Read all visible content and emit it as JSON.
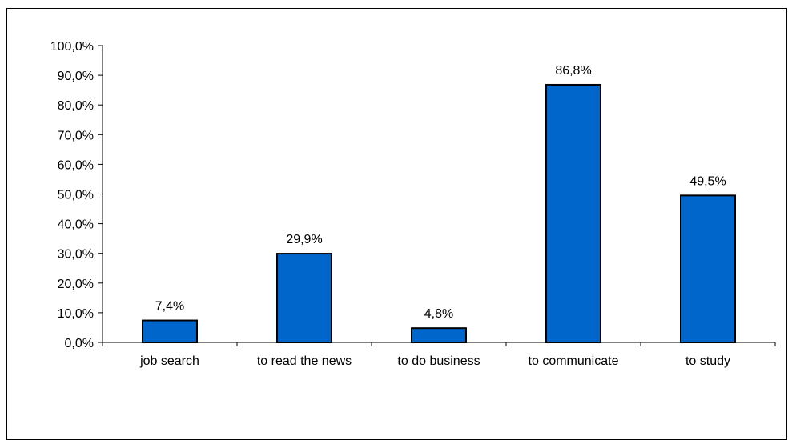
{
  "chart_data": {
    "type": "bar",
    "categories": [
      "job search",
      "to read the news",
      "to do business",
      "to communicate",
      "to study"
    ],
    "values": [
      7.4,
      29.9,
      4.8,
      86.8,
      49.5
    ],
    "data_labels": [
      "7,4%",
      "29,9%",
      "4,8%",
      "86,8%",
      "49,5%"
    ],
    "y_ticks": [
      0,
      10,
      20,
      30,
      40,
      50,
      60,
      70,
      80,
      90,
      100
    ],
    "y_tick_labels": [
      "0,0%",
      "10,0%",
      "20,0%",
      "30,0%",
      "40,0%",
      "50,0%",
      "60,0%",
      "70,0%",
      "80,0%",
      "90,0%",
      "100,0%"
    ],
    "ylim": [
      0,
      100
    ],
    "title": "",
    "xlabel": "",
    "ylabel": "",
    "grid": false,
    "legend": "none",
    "colors": {
      "bar_fill": "#0066CC",
      "bar_stroke": "#000000",
      "axis": "#000000"
    }
  }
}
